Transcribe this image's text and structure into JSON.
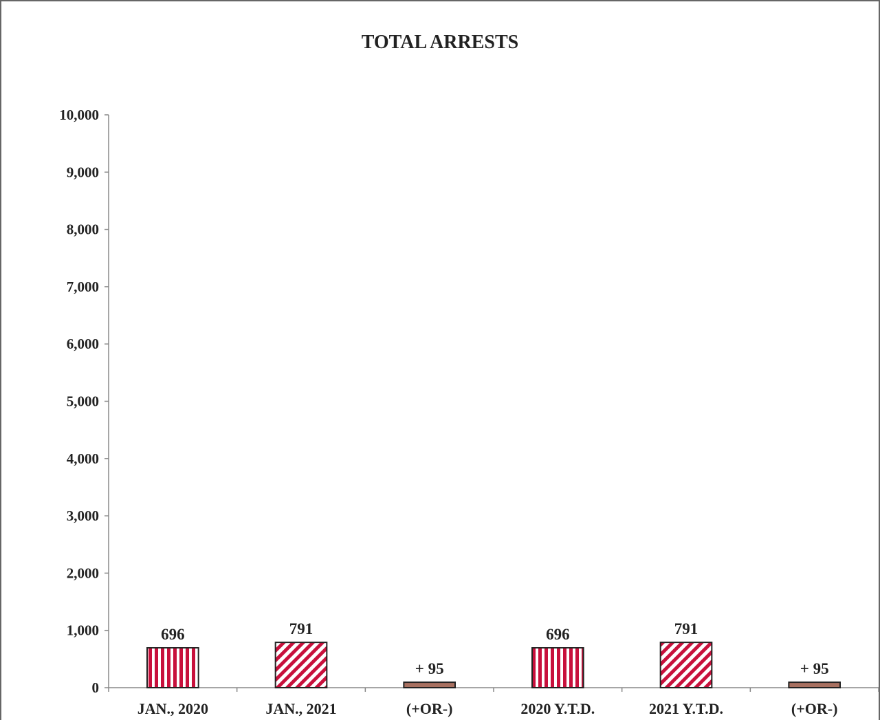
{
  "chart_data": {
    "type": "bar",
    "title": "TOTAL ARRESTS",
    "xlabel": "",
    "ylabel": "",
    "categories": [
      "JAN., 2020",
      "JAN., 2021",
      "(+OR-)",
      "2020 Y.T.D.",
      "2021 Y.T.D.",
      "(+OR-)"
    ],
    "values": [
      696,
      791,
      95,
      696,
      791,
      95
    ],
    "data_labels": [
      "696",
      "791",
      "+ 95",
      "696",
      "791",
      "+ 95"
    ],
    "bar_patterns": [
      "vertical-stripes",
      "diagonal-stripes",
      "solid",
      "vertical-stripes",
      "diagonal-stripes",
      "solid"
    ],
    "ylim": [
      0,
      10000
    ],
    "yticks": [
      0,
      1000,
      2000,
      3000,
      4000,
      5000,
      6000,
      7000,
      8000,
      9000,
      10000
    ],
    "ytick_labels": [
      "0",
      "1,000",
      "2,000",
      "3,000",
      "4,000",
      "5,000",
      "6,000",
      "7,000",
      "8,000",
      "9,000",
      "10,000"
    ],
    "grid": false,
    "legend": "none",
    "colors": {
      "stripe": "#c8103c",
      "solid": "#a87060",
      "outline": "#222222",
      "axis": "#888888"
    }
  }
}
